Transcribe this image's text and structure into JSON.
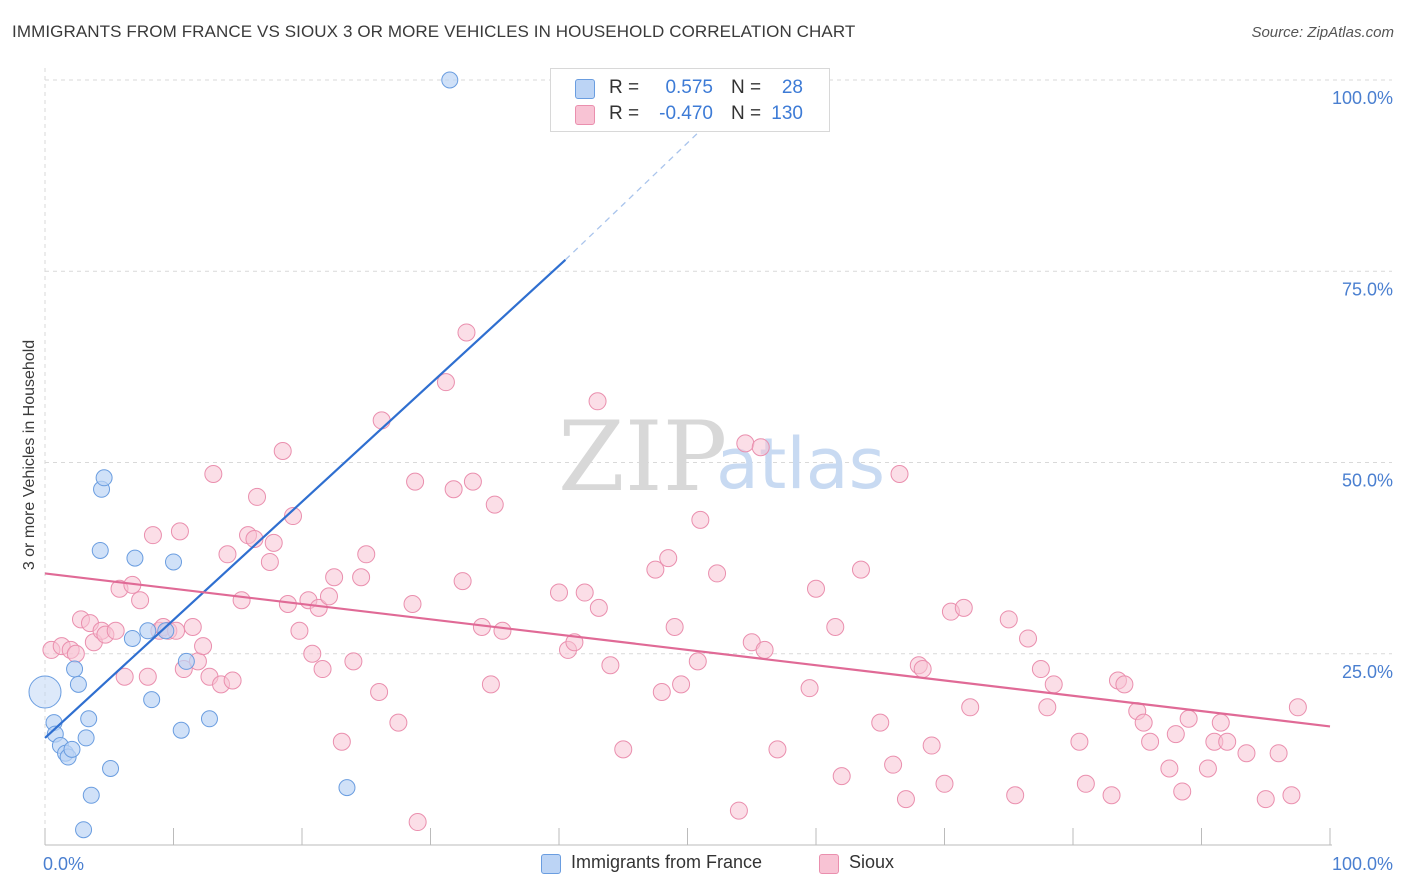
{
  "title": "IMMIGRANTS FROM FRANCE VS SIOUX 3 OR MORE VEHICLES IN HOUSEHOLD CORRELATION CHART",
  "source": "Source: ZipAtlas.com",
  "watermark": {
    "zip": "ZIP",
    "atlas": "atlas"
  },
  "legend": {
    "rows": [
      {
        "r_label": "R =",
        "r_value": "0.575",
        "n_label": "N =",
        "n_value": "28"
      },
      {
        "r_label": "R =",
        "r_value": "-0.470",
        "n_label": "N =",
        "n_value": "130"
      }
    ]
  },
  "bottom_legend": {
    "series1": "Immigrants from France",
    "series2": "Sioux"
  },
  "colors": {
    "blue_fill": "#bcd4f5",
    "blue_stroke": "#6a9de0",
    "blue_line": "#2f6fd0",
    "pink_fill": "#f8c3d4",
    "pink_stroke": "#ea8fae",
    "pink_line": "#e06a96",
    "axis_text": "#4a7fd0",
    "grid": "#d9d9d9"
  },
  "chart_data": {
    "type": "scatter",
    "title": "IMMIGRANTS FROM FRANCE VS SIOUX 3 OR MORE VEHICLES IN HOUSEHOLD CORRELATION CHART",
    "xlabel": "",
    "ylabel": "3 or more Vehicles in Household",
    "xlim": [
      0,
      100
    ],
    "ylim": [
      0,
      100
    ],
    "x_tick_labels": [
      "0.0%",
      "100.0%"
    ],
    "y_ticks": [
      25,
      50,
      75,
      100
    ],
    "y_tick_labels": [
      "25.0%",
      "50.0%",
      "75.0%",
      "100.0%"
    ],
    "grid": true,
    "series": [
      {
        "name": "Immigrants from France",
        "R": 0.575,
        "N": 28,
        "trend": {
          "x0": 0,
          "y0": 14,
          "x1": 40.5,
          "y1": 76.5,
          "dash_to_x": 52,
          "dash_to_y": 95
        },
        "points": [
          [
            0,
            20
          ],
          [
            0.7,
            16
          ],
          [
            0.8,
            14.5
          ],
          [
            1.2,
            13
          ],
          [
            1.6,
            12
          ],
          [
            1.8,
            11.5
          ],
          [
            2.1,
            12.5
          ],
          [
            2.3,
            23
          ],
          [
            2.6,
            21
          ],
          [
            3.2,
            14
          ],
          [
            3.4,
            16.5
          ],
          [
            3.6,
            6.5
          ],
          [
            4.3,
            38.5
          ],
          [
            4.4,
            46.5
          ],
          [
            4.6,
            48
          ],
          [
            5.1,
            10
          ],
          [
            3.0,
            2
          ],
          [
            6.8,
            27
          ],
          [
            7.0,
            37.5
          ],
          [
            8.0,
            28
          ],
          [
            8.3,
            19
          ],
          [
            9.4,
            28
          ],
          [
            10.0,
            37
          ],
          [
            10.6,
            15
          ],
          [
            11.0,
            24
          ],
          [
            12.8,
            16.5
          ],
          [
            23.5,
            7.5
          ],
          [
            31.5,
            100
          ]
        ]
      },
      {
        "name": "Sioux",
        "R": -0.47,
        "N": 130,
        "trend": {
          "x0": 0,
          "y0": 35.5,
          "x1": 100,
          "y1": 15.5
        },
        "points": [
          [
            0.5,
            25.5
          ],
          [
            1.3,
            26
          ],
          [
            2.0,
            25.5
          ],
          [
            2.4,
            25
          ],
          [
            2.8,
            29.5
          ],
          [
            3.5,
            29
          ],
          [
            3.8,
            26.5
          ],
          [
            4.4,
            28
          ],
          [
            4.7,
            27.5
          ],
          [
            5.5,
            28
          ],
          [
            5.8,
            33.5
          ],
          [
            6.2,
            22
          ],
          [
            6.8,
            34
          ],
          [
            7.4,
            32
          ],
          [
            8.0,
            22
          ],
          [
            8.4,
            40.5
          ],
          [
            8.9,
            28
          ],
          [
            9.2,
            28.5
          ],
          [
            9.6,
            28
          ],
          [
            10.2,
            28
          ],
          [
            10.5,
            41
          ],
          [
            10.8,
            23
          ],
          [
            11.5,
            28.5
          ],
          [
            11.9,
            24
          ],
          [
            12.3,
            26
          ],
          [
            12.8,
            22
          ],
          [
            13.1,
            48.5
          ],
          [
            13.7,
            21
          ],
          [
            14.2,
            38
          ],
          [
            14.6,
            21.5
          ],
          [
            15.3,
            32
          ],
          [
            15.8,
            40.5
          ],
          [
            16.3,
            40
          ],
          [
            16.5,
            45.5
          ],
          [
            17.5,
            37
          ],
          [
            17.8,
            39.5
          ],
          [
            18.5,
            51.5
          ],
          [
            18.9,
            31.5
          ],
          [
            19.3,
            43
          ],
          [
            19.8,
            28
          ],
          [
            20.5,
            32
          ],
          [
            20.8,
            25
          ],
          [
            21.3,
            31
          ],
          [
            21.6,
            23
          ],
          [
            22.1,
            32.5
          ],
          [
            22.5,
            35
          ],
          [
            23.1,
            13.5
          ],
          [
            24.0,
            24
          ],
          [
            24.6,
            35
          ],
          [
            25.0,
            38
          ],
          [
            26.0,
            20
          ],
          [
            26.2,
            55.5
          ],
          [
            27.5,
            16
          ],
          [
            28.6,
            31.5
          ],
          [
            28.8,
            47.5
          ],
          [
            29.0,
            3
          ],
          [
            31.2,
            60.5
          ],
          [
            31.8,
            46.5
          ],
          [
            32.5,
            34.5
          ],
          [
            32.8,
            67
          ],
          [
            33.3,
            47.5
          ],
          [
            34.0,
            28.5
          ],
          [
            34.7,
            21
          ],
          [
            35.0,
            44.5
          ],
          [
            35.6,
            28
          ],
          [
            40.0,
            33
          ],
          [
            40.7,
            25.5
          ],
          [
            41.2,
            26.5
          ],
          [
            42.0,
            33
          ],
          [
            43.0,
            58
          ],
          [
            43.1,
            31
          ],
          [
            44.0,
            23.5
          ],
          [
            45.0,
            12.5
          ],
          [
            47.5,
            36
          ],
          [
            48.0,
            20
          ],
          [
            48.5,
            37.5
          ],
          [
            49.0,
            28.5
          ],
          [
            49.5,
            21
          ],
          [
            50.8,
            24
          ],
          [
            51.0,
            42.5
          ],
          [
            52.3,
            35.5
          ],
          [
            54.0,
            4.5
          ],
          [
            54.5,
            52.5
          ],
          [
            55.0,
            26.5
          ],
          [
            55.7,
            52
          ],
          [
            56.0,
            25.5
          ],
          [
            57.0,
            12.5
          ],
          [
            59.5,
            20.5
          ],
          [
            60.0,
            33.5
          ],
          [
            61.5,
            28.5
          ],
          [
            62.0,
            9
          ],
          [
            63.5,
            36
          ],
          [
            65.0,
            16
          ],
          [
            66.0,
            10.5
          ],
          [
            66.5,
            48.5
          ],
          [
            67.0,
            6
          ],
          [
            68.0,
            23.5
          ],
          [
            68.3,
            23
          ],
          [
            69.0,
            13
          ],
          [
            70.0,
            8
          ],
          [
            70.5,
            30.5
          ],
          [
            71.5,
            31
          ],
          [
            72.0,
            18
          ],
          [
            75.0,
            29.5
          ],
          [
            75.5,
            6.5
          ],
          [
            76.5,
            27
          ],
          [
            77.5,
            23
          ],
          [
            78.0,
            18
          ],
          [
            78.5,
            21
          ],
          [
            80.5,
            13.5
          ],
          [
            81.0,
            8
          ],
          [
            83.0,
            6.5
          ],
          [
            83.5,
            21.5
          ],
          [
            84.0,
            21
          ],
          [
            85.0,
            17.5
          ],
          [
            85.5,
            16
          ],
          [
            86.0,
            13.5
          ],
          [
            87.5,
            10
          ],
          [
            88.0,
            14.5
          ],
          [
            88.5,
            7
          ],
          [
            89.0,
            16.5
          ],
          [
            90.5,
            10
          ],
          [
            91.0,
            13.5
          ],
          [
            91.5,
            16
          ],
          [
            92.0,
            13.5
          ],
          [
            93.5,
            12
          ],
          [
            95.0,
            6
          ],
          [
            96.0,
            12
          ],
          [
            97.0,
            6.5
          ],
          [
            97.5,
            18
          ]
        ]
      }
    ]
  }
}
